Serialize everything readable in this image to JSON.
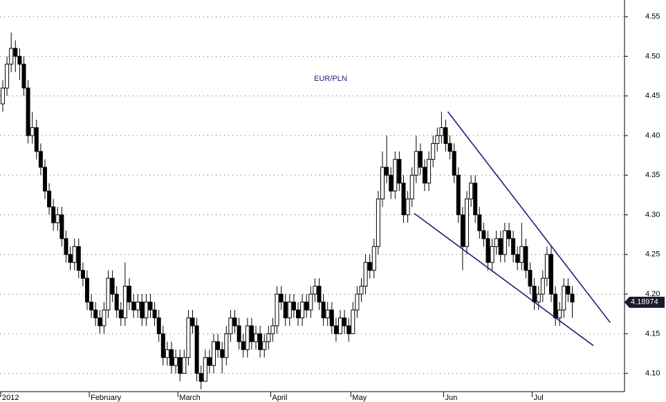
{
  "chart_data": {
    "type": "candlestick",
    "title": "EUR/PLN",
    "categories": [
      "2012",
      null,
      null,
      null,
      null,
      null,
      null,
      null,
      null,
      null,
      null,
      null,
      null,
      null,
      null,
      null,
      null,
      null,
      null,
      null,
      null,
      "February",
      null,
      null,
      null,
      null,
      null,
      null,
      null,
      null,
      null,
      null,
      null,
      null,
      null,
      null,
      null,
      null,
      null,
      null,
      null,
      null,
      "March",
      null,
      null,
      null,
      null,
      null,
      null,
      null,
      null,
      null,
      null,
      null,
      null,
      null,
      null,
      null,
      null,
      null,
      null,
      null,
      null,
      null,
      "April",
      null,
      null,
      null,
      null,
      null,
      null,
      null,
      null,
      null,
      null,
      null,
      null,
      null,
      null,
      null,
      null,
      null,
      null,
      "May",
      null,
      null,
      null,
      null,
      null,
      null,
      null,
      null,
      null,
      null,
      null,
      null,
      null,
      null,
      null,
      null,
      null,
      null,
      null,
      null,
      null,
      "Jun",
      null,
      null,
      null,
      null,
      null,
      null,
      null,
      null,
      null,
      null,
      null,
      null,
      null,
      null,
      null,
      null,
      null,
      null,
      null,
      null,
      "Jul",
      null,
      null,
      null,
      null,
      null,
      null,
      null,
      null,
      null
    ],
    "ohlc": [
      [
        4.44,
        4.47,
        4.43,
        4.46
      ],
      [
        4.46,
        4.5,
        4.45,
        4.49
      ],
      [
        4.49,
        4.53,
        4.48,
        4.51
      ],
      [
        4.51,
        4.52,
        4.48,
        4.5
      ],
      [
        4.5,
        4.51,
        4.47,
        4.49
      ],
      [
        4.49,
        4.5,
        4.45,
        4.46
      ],
      [
        4.46,
        4.47,
        4.39,
        4.4
      ],
      [
        4.4,
        4.43,
        4.39,
        4.41
      ],
      [
        4.41,
        4.42,
        4.37,
        4.38
      ],
      [
        4.38,
        4.39,
        4.35,
        4.36
      ],
      [
        4.36,
        4.37,
        4.32,
        4.33
      ],
      [
        4.33,
        4.34,
        4.3,
        4.31
      ],
      [
        4.31,
        4.32,
        4.28,
        4.29
      ],
      [
        4.29,
        4.31,
        4.28,
        4.3
      ],
      [
        4.3,
        4.31,
        4.26,
        4.27
      ],
      [
        4.27,
        4.28,
        4.24,
        4.25
      ],
      [
        4.25,
        4.26,
        4.23,
        4.24
      ],
      [
        4.24,
        4.27,
        4.23,
        4.26
      ],
      [
        4.26,
        4.27,
        4.22,
        4.23
      ],
      [
        4.23,
        4.24,
        4.21,
        4.22
      ],
      [
        4.22,
        4.23,
        4.18,
        4.19
      ],
      [
        4.19,
        4.2,
        4.17,
        4.18
      ],
      [
        4.18,
        4.19,
        4.16,
        4.17
      ],
      [
        4.17,
        4.18,
        4.15,
        4.16
      ],
      [
        4.16,
        4.19,
        4.15,
        4.18
      ],
      [
        4.18,
        4.23,
        4.17,
        4.22
      ],
      [
        4.22,
        4.23,
        4.19,
        4.2
      ],
      [
        4.2,
        4.21,
        4.17,
        4.18
      ],
      [
        4.18,
        4.19,
        4.16,
        4.17
      ],
      [
        4.17,
        4.24,
        4.16,
        4.21
      ],
      [
        4.21,
        4.22,
        4.18,
        4.19
      ],
      [
        4.19,
        4.2,
        4.17,
        4.18
      ],
      [
        4.18,
        4.2,
        4.17,
        4.19
      ],
      [
        4.19,
        4.2,
        4.16,
        4.17
      ],
      [
        4.17,
        4.2,
        4.16,
        4.19
      ],
      [
        4.19,
        4.2,
        4.17,
        4.18
      ],
      [
        4.18,
        4.19,
        4.16,
        4.17
      ],
      [
        4.17,
        4.18,
        4.14,
        4.15
      ],
      [
        4.15,
        4.16,
        4.11,
        4.12
      ],
      [
        4.12,
        4.14,
        4.11,
        4.13
      ],
      [
        4.13,
        4.14,
        4.1,
        4.11
      ],
      [
        4.11,
        4.13,
        4.1,
        4.12
      ],
      [
        4.12,
        4.13,
        4.09,
        4.1
      ],
      [
        4.1,
        4.13,
        4.1,
        4.12
      ],
      [
        4.12,
        4.18,
        4.11,
        4.17
      ],
      [
        4.17,
        4.18,
        4.15,
        4.16
      ],
      [
        4.16,
        4.17,
        4.09,
        4.1
      ],
      [
        4.1,
        4.11,
        4.08,
        4.09
      ],
      [
        4.09,
        4.13,
        4.09,
        4.12
      ],
      [
        4.12,
        4.13,
        4.1,
        4.11
      ],
      [
        4.11,
        4.15,
        4.1,
        4.14
      ],
      [
        4.14,
        4.15,
        4.12,
        4.13
      ],
      [
        4.13,
        4.14,
        4.1,
        4.12
      ],
      [
        4.12,
        4.16,
        4.11,
        4.15
      ],
      [
        4.15,
        4.18,
        4.14,
        4.17
      ],
      [
        4.17,
        4.18,
        4.15,
        4.16
      ],
      [
        4.16,
        4.17,
        4.13,
        4.14
      ],
      [
        4.14,
        4.15,
        4.12,
        4.13
      ],
      [
        4.13,
        4.17,
        4.12,
        4.16
      ],
      [
        4.16,
        4.17,
        4.13,
        4.14
      ],
      [
        4.14,
        4.16,
        4.13,
        4.15
      ],
      [
        4.15,
        4.16,
        4.12,
        4.13
      ],
      [
        4.13,
        4.15,
        4.12,
        4.14
      ],
      [
        4.14,
        4.16,
        4.13,
        4.15
      ],
      [
        4.15,
        4.17,
        4.14,
        4.16
      ],
      [
        4.16,
        4.21,
        4.15,
        4.2
      ],
      [
        4.2,
        4.21,
        4.18,
        4.19
      ],
      [
        4.19,
        4.2,
        4.16,
        4.17
      ],
      [
        4.17,
        4.2,
        4.16,
        4.19
      ],
      [
        4.19,
        4.2,
        4.17,
        4.18
      ],
      [
        4.18,
        4.19,
        4.16,
        4.17
      ],
      [
        4.17,
        4.2,
        4.16,
        4.19
      ],
      [
        4.19,
        4.2,
        4.17,
        4.18
      ],
      [
        4.18,
        4.21,
        4.17,
        4.2
      ],
      [
        4.2,
        4.22,
        4.19,
        4.21
      ],
      [
        4.21,
        4.22,
        4.18,
        4.19
      ],
      [
        4.19,
        4.2,
        4.16,
        4.17
      ],
      [
        4.17,
        4.19,
        4.16,
        4.18
      ],
      [
        4.18,
        4.19,
        4.15,
        4.16
      ],
      [
        4.16,
        4.17,
        4.14,
        4.15
      ],
      [
        4.15,
        4.18,
        4.15,
        4.17
      ],
      [
        4.17,
        4.18,
        4.15,
        4.16
      ],
      [
        4.16,
        4.17,
        4.14,
        4.15
      ],
      [
        4.15,
        4.19,
        4.15,
        4.18
      ],
      [
        4.18,
        4.21,
        4.17,
        4.2
      ],
      [
        4.2,
        4.22,
        4.19,
        4.21
      ],
      [
        4.21,
        4.25,
        4.2,
        4.24
      ],
      [
        4.24,
        4.25,
        4.22,
        4.23
      ],
      [
        4.23,
        4.27,
        4.22,
        4.26
      ],
      [
        4.26,
        4.33,
        4.25,
        4.32
      ],
      [
        4.32,
        4.38,
        4.31,
        4.36
      ],
      [
        4.36,
        4.4,
        4.34,
        4.35
      ],
      [
        4.35,
        4.36,
        4.32,
        4.33
      ],
      [
        4.33,
        4.38,
        4.32,
        4.37
      ],
      [
        4.37,
        4.38,
        4.33,
        4.34
      ],
      [
        4.34,
        4.35,
        4.29,
        4.3
      ],
      [
        4.3,
        4.33,
        4.29,
        4.32
      ],
      [
        4.32,
        4.36,
        4.31,
        4.35
      ],
      [
        4.35,
        4.4,
        4.34,
        4.38
      ],
      [
        4.38,
        4.39,
        4.35,
        4.36
      ],
      [
        4.36,
        4.37,
        4.33,
        4.34
      ],
      [
        4.34,
        4.38,
        4.33,
        4.37
      ],
      [
        4.37,
        4.4,
        4.36,
        4.39
      ],
      [
        4.39,
        4.41,
        4.38,
        4.4
      ],
      [
        4.4,
        4.43,
        4.39,
        4.41
      ],
      [
        4.41,
        4.42,
        4.38,
        4.39
      ],
      [
        4.39,
        4.4,
        4.37,
        4.38
      ],
      [
        4.38,
        4.39,
        4.34,
        4.35
      ],
      [
        4.35,
        4.36,
        4.29,
        4.3
      ],
      [
        4.3,
        4.31,
        4.23,
        4.26
      ],
      [
        4.26,
        4.33,
        4.25,
        4.32
      ],
      [
        4.32,
        4.35,
        4.31,
        4.34
      ],
      [
        4.34,
        4.35,
        4.29,
        4.3
      ],
      [
        4.3,
        4.31,
        4.27,
        4.28
      ],
      [
        4.28,
        4.29,
        4.26,
        4.27
      ],
      [
        4.27,
        4.28,
        4.23,
        4.24
      ],
      [
        4.24,
        4.27,
        4.23,
        4.26
      ],
      [
        4.26,
        4.28,
        4.25,
        4.27
      ],
      [
        4.27,
        4.28,
        4.24,
        4.25
      ],
      [
        4.25,
        4.29,
        4.24,
        4.28
      ],
      [
        4.28,
        4.29,
        4.26,
        4.27
      ],
      [
        4.27,
        4.28,
        4.24,
        4.25
      ],
      [
        4.25,
        4.26,
        4.23,
        4.24
      ],
      [
        4.24,
        4.29,
        4.23,
        4.26
      ],
      [
        4.26,
        4.27,
        4.22,
        4.23
      ],
      [
        4.23,
        4.24,
        4.2,
        4.21
      ],
      [
        4.21,
        4.22,
        4.18,
        4.19
      ],
      [
        4.19,
        4.21,
        4.18,
        4.2
      ],
      [
        4.2,
        4.23,
        4.19,
        4.22
      ],
      [
        4.22,
        4.26,
        4.21,
        4.25
      ],
      [
        4.25,
        4.26,
        4.19,
        4.2
      ],
      [
        4.2,
        4.21,
        4.16,
        4.17
      ],
      [
        4.17,
        4.19,
        4.16,
        4.18
      ],
      [
        4.18,
        4.22,
        4.17,
        4.21
      ],
      [
        4.21,
        4.22,
        4.19,
        4.2
      ],
      [
        4.2,
        4.21,
        4.17,
        4.19
      ]
    ],
    "color": "#000000",
    "line_color": "#1c1c78",
    "ylim": [
      4.077,
      4.571
    ],
    "yticks": [
      {
        "value": 4.1,
        "label": "4.10"
      },
      4.15,
      {
        "value": 4.2,
        "label": "4.20"
      },
      4.25,
      {
        "value": 4.3,
        "label": "4.30"
      },
      4.35,
      {
        "value": 4.4,
        "label": "4.40"
      },
      4.45,
      {
        "value": 4.5,
        "label": "4.50"
      },
      4.55
    ],
    "grid": true,
    "trendlines": [
      {
        "start": [
          105.5,
          4.43
        ],
        "end": [
          144,
          4.164
        ]
      },
      {
        "start": [
          97.5,
          4.302
        ],
        "end": [
          140,
          4.135
        ]
      }
    ],
    "last_value": 4.18974
  }
}
